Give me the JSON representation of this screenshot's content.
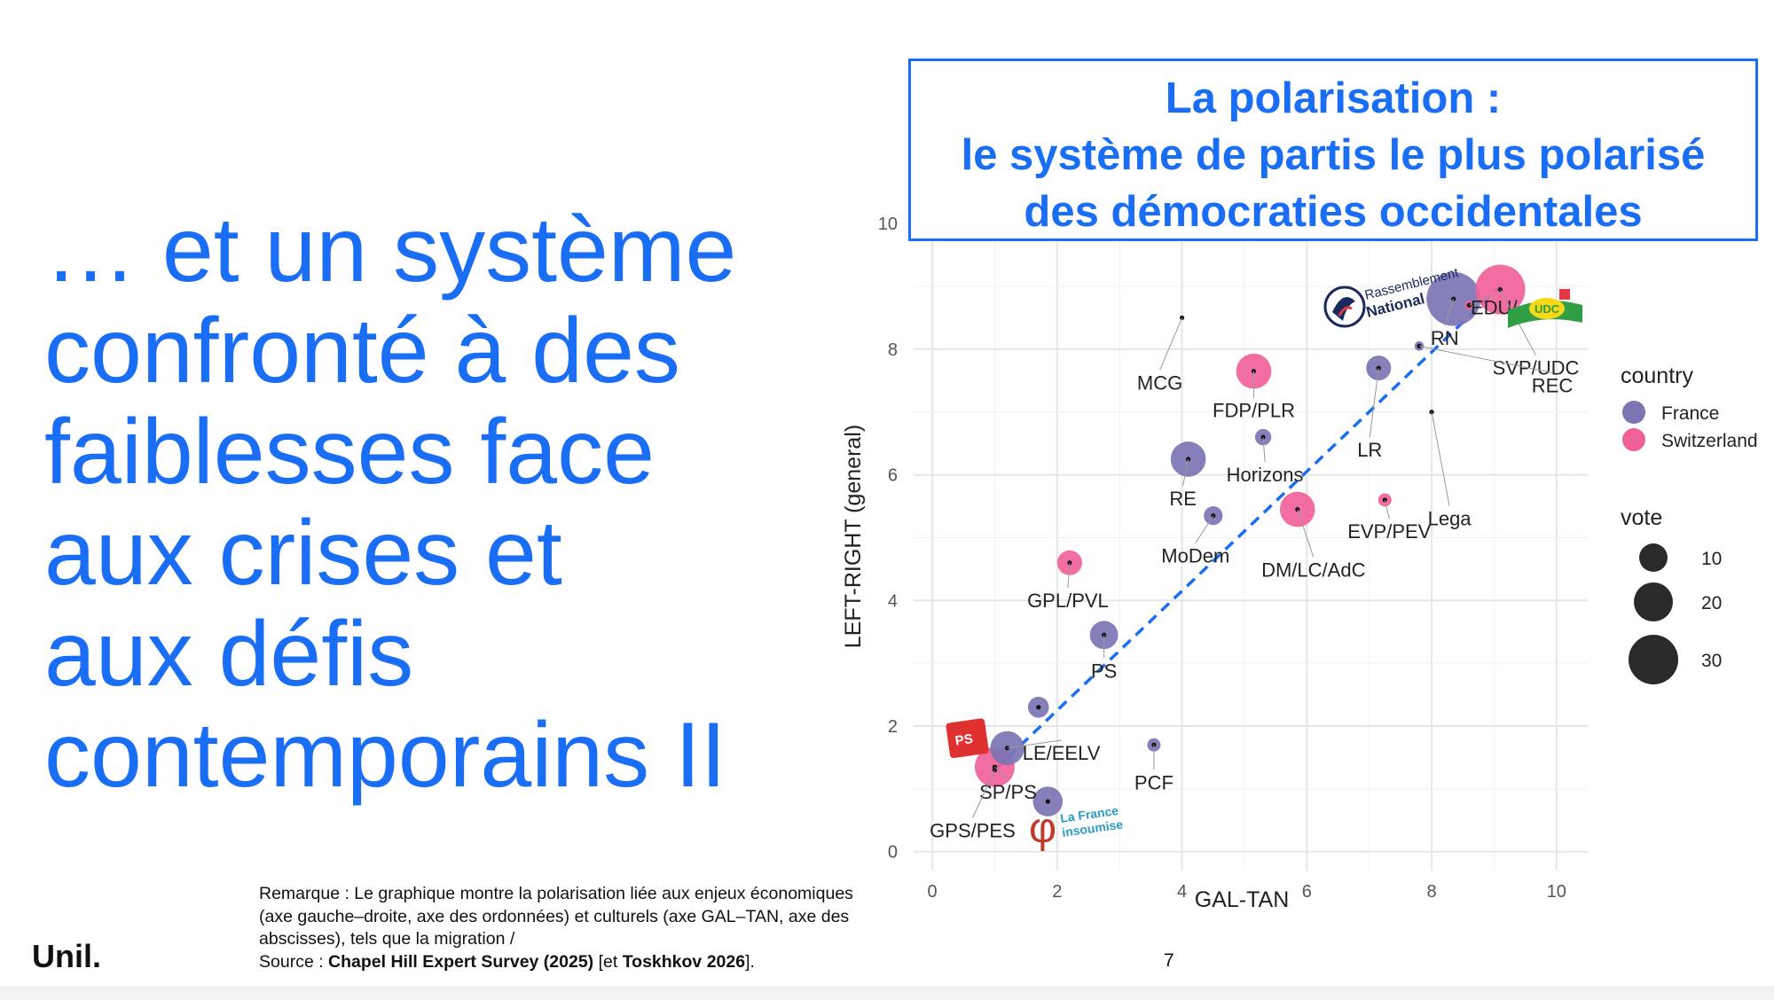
{
  "slide": {
    "title_lines": [
      "… et un système",
      "confronté à des",
      "faiblesses face",
      "aux crises et",
      "aux défis",
      "contemporains II"
    ],
    "chart_title_lines": [
      "La polarisation :",
      "le système de partis le plus polarisé",
      "des démocraties occidentales"
    ],
    "remark_text": "Remarque : Le graphique montre la polarisation liée aux enjeux économiques (axe gauche–droite, axe des ordonnées) et culturels (axe GAL–TAN, axe des abscisses), tels que la migration /",
    "source_prefix": "Source : ",
    "source_bold_1": "Chapel Hill Expert Survey (2025)",
    "source_mid": " [et ",
    "source_bold_2": "Toskhkov 2026",
    "source_suffix": "].",
    "page_number": "7",
    "logo_text": "Unil.",
    "logo_rn_line1": "Rassemblement",
    "logo_rn_line2": "National",
    "logo_lfi_line1": "La France",
    "logo_lfi_line2": "insoumise",
    "logo_ps": "PS",
    "logo_udc": "UDC"
  },
  "colors": {
    "accent": "#1a6ef5",
    "france": "#7b75b4",
    "switzerland": "#f0619a",
    "trend": "#1a6ef5"
  },
  "chart_data": {
    "type": "scatter",
    "xlabel": "GAL-TAN",
    "ylabel": "LEFT-RIGHT (general)",
    "xlim": [
      -0.3,
      10.5
    ],
    "ylim": [
      -0.3,
      10.2
    ],
    "x_ticks": [
      0,
      2,
      4,
      6,
      8,
      10
    ],
    "y_ticks": [
      0,
      2,
      4,
      6,
      8,
      10
    ],
    "grid": true,
    "legend_placement": "right",
    "legend_country_title": "country",
    "legend_country_items": [
      "France",
      "Switzerland"
    ],
    "legend_size_title": "vote",
    "legend_size_items": [
      10,
      20,
      30
    ],
    "trend_line": {
      "x": [
        1.0,
        9.1
      ],
      "y": [
        1.3,
        9.0
      ]
    },
    "points": [
      {
        "label": "RN",
        "x": 8.35,
        "y": 8.8,
        "vote": 33,
        "country": "France"
      },
      {
        "label": "EDU/",
        "x": 8.6,
        "y": 8.7,
        "vote": 1,
        "country": "Switzerland"
      },
      {
        "label": "SVP/UDC",
        "x": 9.1,
        "y": 8.95,
        "vote": 28,
        "country": "Switzerland"
      },
      {
        "label": "REC",
        "x": 7.8,
        "y": 8.05,
        "vote": 1,
        "country": "France"
      },
      {
        "label": "LR",
        "x": 7.15,
        "y": 7.7,
        "vote": 7,
        "country": "France"
      },
      {
        "label": "MCG",
        "x": 4.0,
        "y": 8.5,
        "vote": 0,
        "country": "Switzerland"
      },
      {
        "label": "Lega",
        "x": 8.0,
        "y": 7.0,
        "vote": 0,
        "country": "Other"
      },
      {
        "label": "FDP/PLR",
        "x": 5.15,
        "y": 7.65,
        "vote": 14,
        "country": "Switzerland"
      },
      {
        "label": "Horizons",
        "x": 5.3,
        "y": 6.6,
        "vote": 3,
        "country": "France"
      },
      {
        "label": "RE",
        "x": 4.1,
        "y": 6.25,
        "vote": 14,
        "country": "France"
      },
      {
        "label": "MoDem",
        "x": 4.5,
        "y": 5.35,
        "vote": 4,
        "country": "France"
      },
      {
        "label": "DM/LC/AdC",
        "x": 5.85,
        "y": 5.45,
        "vote": 14,
        "country": "Switzerland"
      },
      {
        "label": "EVP/PEV",
        "x": 7.25,
        "y": 5.6,
        "vote": 2,
        "country": "Switzerland"
      },
      {
        "label": "GPL/PVL",
        "x": 2.2,
        "y": 4.6,
        "vote": 7,
        "country": "Switzerland"
      },
      {
        "label": "PS",
        "x": 2.75,
        "y": 3.45,
        "vote": 9,
        "country": "France"
      },
      {
        "label": "PCF",
        "x": 3.55,
        "y": 1.7,
        "vote": 2,
        "country": "France"
      },
      {
        "label": "",
        "x": 1.7,
        "y": 2.3,
        "vote": 5,
        "country": "France"
      },
      {
        "label": "LE/EELV",
        "x": 1.2,
        "y": 1.65,
        "vote": 13,
        "country": "France"
      },
      {
        "label": "SP/PS",
        "x": 1.0,
        "y": 1.35,
        "vote": 18,
        "country": "Switzerland"
      },
      {
        "label": "LFI",
        "x": 1.85,
        "y": 0.8,
        "vote": 10,
        "country": "France"
      },
      {
        "label": "GPS/PES",
        "x": 1.0,
        "y": 1.3,
        "vote": 0,
        "country": "Switzerland"
      }
    ]
  }
}
